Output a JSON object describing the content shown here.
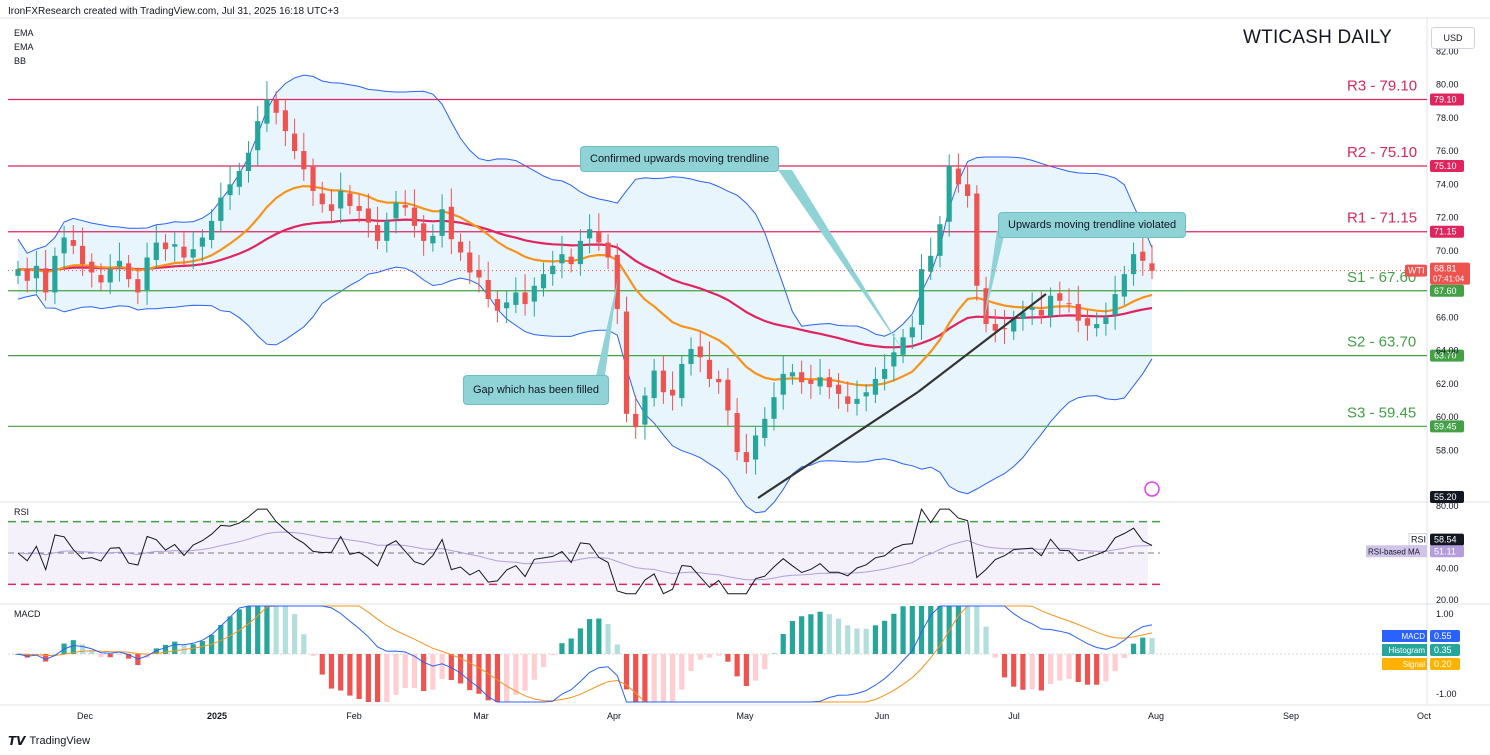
{
  "header": {
    "created_text": "IronFXResearch created with TradingView.com, Jul 31, 2025 16:18 UTC+3"
  },
  "indicators": [
    "EMA",
    "EMA",
    "BB"
  ],
  "title": "WTICASH DAILY",
  "currency_button": "USD",
  "footer": {
    "brand": "TradingView"
  },
  "callouts": {
    "trendline_confirmed": "Confirmed upwards moving trendline",
    "trendline_violated": "Upwards moving trendline violated",
    "gap_filled": "Gap which has been filled"
  },
  "colors": {
    "up": "#26a69a",
    "down": "#ef5350",
    "ema_fast": "#f7931a",
    "ema_slow": "#e0245e",
    "bb": "#2962ff",
    "bb_fill": "#e3f2fd",
    "resistance": "#e0245e",
    "support": "#43a047",
    "rsi_line": "#131722",
    "rsi_ma": "#b39ddb",
    "macd": "#2962ff",
    "signal": "#f7931a"
  },
  "chart_data": [
    {
      "type": "candlestick",
      "title": "WTICASH DAILY",
      "ylim": [
        55.2,
        84.0
      ],
      "y_ticks": [
        "82.00",
        "80.00",
        "78.00",
        "76.00",
        "74.00",
        "72.00",
        "70.00",
        "66.00",
        "64.00",
        "62.00",
        "60.00",
        "58.00"
      ],
      "x_tick_labels": [
        "Dec",
        "2025",
        "Feb",
        "Mar",
        "Apr",
        "May",
        "Jun",
        "Jul",
        "Aug",
        "Sep",
        "Oct"
      ],
      "levels": [
        {
          "name": "R3 - 79.10",
          "value": 79.1,
          "badge": "79.10",
          "kind": "resistance"
        },
        {
          "name": "R2 - 75.10",
          "value": 75.1,
          "badge": "75.10",
          "kind": "resistance"
        },
        {
          "name": "R1 - 71.15",
          "value": 71.15,
          "badge": "71.15",
          "kind": "resistance"
        },
        {
          "name": "S1 - 67.60",
          "value": 67.6,
          "badge": "67.60",
          "kind": "support"
        },
        {
          "name": "S2 - 63.70",
          "value": 63.7,
          "badge": "63.70",
          "kind": "support"
        },
        {
          "name": "S3 - 59.45",
          "value": 59.45,
          "badge": "59.45",
          "kind": "support"
        }
      ],
      "last_price": {
        "symbol": "WTI",
        "value": "68.81",
        "countdown": "07:41:04"
      },
      "axis_low_badge": "55.20",
      "closes": [
        68.9,
        68.2,
        69.1,
        67.5,
        69.7,
        70.8,
        70.3,
        69.2,
        68.7,
        68.1,
        68.9,
        69.4,
        68.3,
        67.5,
        69.6,
        70.5,
        70.1,
        70.4,
        69.6,
        70.1,
        70.8,
        71.8,
        73.2,
        74.0,
        74.8,
        75.9,
        77.8,
        79.1,
        78.3,
        77.2,
        76.0,
        74.9,
        73.6,
        72.8,
        72.4,
        73.6,
        72.7,
        72.4,
        71.7,
        70.6,
        71.8,
        72.9,
        72.6,
        71.5,
        70.6,
        70.9,
        72.5,
        70.7,
        69.9,
        68.7,
        68.4,
        67.1,
        66.4,
        66.9,
        67.5,
        66.8,
        67.9,
        68.6,
        69.1,
        69.8,
        69.2,
        70.6,
        71.3,
        70.5,
        69.6,
        66.5,
        60.2,
        59.4,
        61.3,
        62.8,
        61.5,
        61.3,
        63.2,
        64.1,
        63.6,
        62.3,
        62.1,
        60.4,
        57.9,
        57.3,
        58.9,
        59.9,
        61.2,
        62.6,
        62.7,
        62.1,
        62.0,
        62.4,
        61.8,
        61.4,
        60.8,
        61.1,
        61.5,
        62.3,
        62.9,
        63.9,
        64.8,
        65.4,
        68.9,
        69.7,
        71.6,
        75.1,
        74.0,
        73.3,
        67.9,
        65.6,
        65.2,
        65.3,
        65.9,
        66.3,
        66.6,
        66.1,
        67.3,
        67.0,
        66.8,
        65.8,
        65.5,
        65.6,
        66.0,
        67.4,
        68.6,
        69.8,
        69.4,
        68.8
      ],
      "rsi": {
        "ylim": [
          20,
          80
        ],
        "y_ticks": [
          "80.00",
          "40.00",
          "20.00"
        ],
        "value": "58.54",
        "ma_label": "RSI-based MA",
        "ma_value": "51.11",
        "label": "RSI"
      },
      "macd": {
        "ylim": [
          -1.2,
          1.2
        ],
        "y_ticks": [
          "1.00",
          "-1.00"
        ],
        "label": "MACD",
        "macd": "0.55",
        "histogram_label": "Histogram",
        "histogram": "0.35",
        "signal_label": "Signal",
        "signal": "0.20"
      }
    }
  ]
}
